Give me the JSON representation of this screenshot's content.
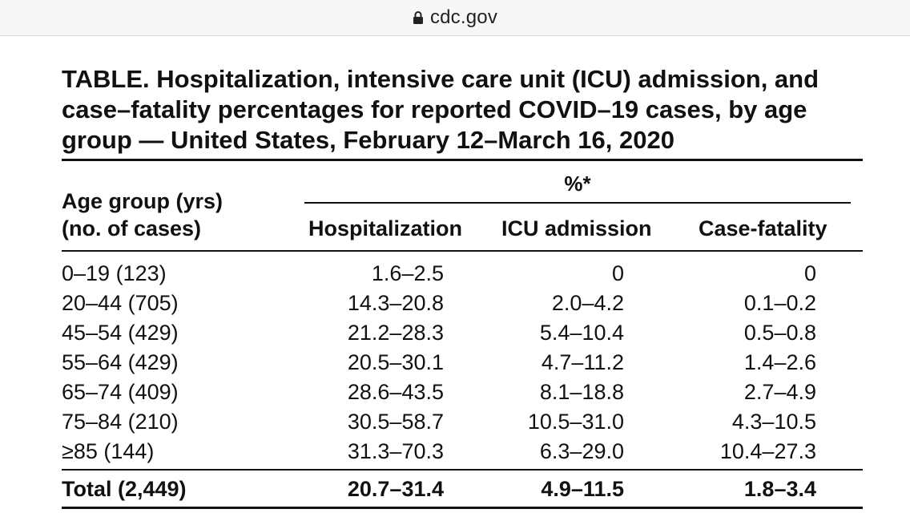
{
  "browser": {
    "url": "cdc.gov",
    "lock_icon": "lock-icon"
  },
  "table": {
    "title": "TABLE. Hospitalization, intensive care unit (ICU) admission, and case–fatality percentages for reported COVID–19 cases, by age group — United States, February 12–March 16, 2020",
    "percent_header": "%*",
    "age_header_line1": "Age group (yrs)",
    "age_header_line2": "(no. of cases)",
    "columns": [
      "Hospitalization",
      "ICU admission",
      "Case-fatality"
    ],
    "rows": [
      {
        "age": "0–19 (123)",
        "hosp": "1.6–2.5",
        "icu": "0",
        "cf": "0"
      },
      {
        "age": "20–44 (705)",
        "hosp": "14.3–20.8",
        "icu": "2.0–4.2",
        "cf": "0.1–0.2"
      },
      {
        "age": "45–54 (429)",
        "hosp": "21.2–28.3",
        "icu": "5.4–10.4",
        "cf": "0.5–0.8"
      },
      {
        "age": "55–64 (429)",
        "hosp": "20.5–30.1",
        "icu": "4.7–11.2",
        "cf": "1.4–2.6"
      },
      {
        "age": "65–74 (409)",
        "hosp": "28.6–43.5",
        "icu": "8.1–18.8",
        "cf": "2.7–4.9"
      },
      {
        "age": "75–84 (210)",
        "hosp": "30.5–58.7",
        "icu": "10.5–31.0",
        "cf": "4.3–10.5"
      },
      {
        "age": "≥85 (144)",
        "hosp": "31.3–70.3",
        "icu": "6.3–29.0",
        "cf": "10.4–27.3"
      }
    ],
    "total": {
      "age": "Total (2,449)",
      "hosp": "20.7–31.4",
      "icu": "4.9–11.5",
      "cf": "1.8–3.4"
    }
  }
}
